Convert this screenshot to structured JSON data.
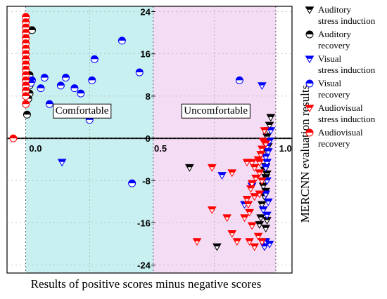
{
  "chart_data": {
    "type": "scatter",
    "xlabel": "Results of positive scores minus negative scores",
    "ylabel": "MERCNN evaluation results",
    "xlim": [
      -0.08,
      1.06
    ],
    "ylim": [
      -25.5,
      25
    ],
    "x_tick_labels": [
      {
        "value": 0.0,
        "label": "0.0"
      },
      {
        "value": 0.5,
        "label": "0.5"
      },
      {
        "value": 1.0,
        "label": "1.0"
      }
    ],
    "y_tick_labels": [
      {
        "value": 24,
        "label": "24"
      },
      {
        "value": 16,
        "label": "16"
      },
      {
        "value": 8,
        "label": "8"
      },
      {
        "value": 0,
        "label": "0"
      },
      {
        "value": -8,
        "label": "-8"
      },
      {
        "value": -16,
        "label": "-16"
      },
      {
        "value": -24,
        "label": "-24"
      }
    ],
    "regions": [
      {
        "label": "Comfortable",
        "x_range": [
          -0.005,
          0.505
        ],
        "color": "#c8f0f0"
      },
      {
        "label": "Uncomfortable",
        "x_range": [
          0.505,
          0.995
        ],
        "color": "#f5dcf5"
      }
    ],
    "legend_position": "right",
    "series": [
      {
        "name": "Auditory stress induction",
        "name_lines": [
          "Auditory",
          "stress induction"
        ],
        "marker": "triangle",
        "color": "#000000",
        "points": [
          [
            0.975,
            4.0
          ],
          [
            0.97,
            2.5
          ],
          [
            0.965,
            1.5
          ],
          [
            0.96,
            0.3
          ],
          [
            0.97,
            -0.5
          ],
          [
            0.965,
            -1.5
          ],
          [
            0.96,
            -2.5
          ],
          [
            0.955,
            -3.5
          ],
          [
            0.96,
            -4.5
          ],
          [
            0.955,
            -5.3
          ],
          [
            0.95,
            -6.0
          ],
          [
            0.96,
            -6.7
          ],
          [
            0.955,
            -7.4
          ],
          [
            0.95,
            -8.1
          ],
          [
            0.945,
            -9.0
          ],
          [
            0.955,
            -10.0
          ],
          [
            0.95,
            -11.0
          ],
          [
            0.94,
            -12.5
          ],
          [
            0.945,
            -13.5
          ],
          [
            0.935,
            -15.0
          ],
          [
            0.96,
            -15.5
          ],
          [
            0.93,
            -16.3
          ],
          [
            0.955,
            -17.0
          ],
          [
            0.65,
            -5.5
          ],
          [
            0.76,
            -20.5
          ]
        ]
      },
      {
        "name": "Auditory recovery",
        "name_lines": [
          "Auditory",
          "recovery"
        ],
        "marker": "circle",
        "color": "#000000",
        "points": [
          [
            0.02,
            20.5
          ],
          [
            0.01,
            12.0
          ],
          [
            0.01,
            10.0
          ],
          [
            0.01,
            8.5
          ],
          [
            0.005,
            7.5
          ],
          [
            0.0,
            4.5
          ]
        ]
      },
      {
        "name": "Visual stress induction",
        "name_lines": [
          "Visual",
          "stress induction"
        ],
        "marker": "triangle",
        "color": "#0000ff",
        "points": [
          [
            0.975,
            1.5
          ],
          [
            0.97,
            -0.5
          ],
          [
            0.96,
            -1.5
          ],
          [
            0.965,
            -2.5
          ],
          [
            0.955,
            -3.5
          ],
          [
            0.96,
            -4.5
          ],
          [
            0.955,
            -5.5
          ],
          [
            0.96,
            -8.0
          ],
          [
            0.955,
            -10.5
          ],
          [
            0.965,
            -12.0
          ],
          [
            0.945,
            -13.5
          ],
          [
            0.96,
            -14.5
          ],
          [
            0.955,
            -19.5
          ],
          [
            0.97,
            -20.0
          ],
          [
            0.95,
            -20.5
          ],
          [
            0.9,
            -9.0
          ],
          [
            0.87,
            -12.5
          ],
          [
            0.78,
            -7.0
          ],
          [
            0.94,
            10.0
          ],
          [
            0.14,
            -4.5
          ]
        ]
      },
      {
        "name": "Visual recovery",
        "name_lines": [
          "Visual",
          "recovery"
        ],
        "marker": "circle",
        "color": "#0000ff",
        "points": [
          [
            0.38,
            18.5
          ],
          [
            0.27,
            15.0
          ],
          [
            0.07,
            11.5
          ],
          [
            0.02,
            11.0
          ],
          [
            0.015,
            10.5
          ],
          [
            0.155,
            11.5
          ],
          [
            0.26,
            11.0
          ],
          [
            0.45,
            12.5
          ],
          [
            0.135,
            10.0
          ],
          [
            0.055,
            9.5
          ],
          [
            0.19,
            9.5
          ],
          [
            0.215,
            8.5
          ],
          [
            0.09,
            6.5
          ],
          [
            0.19,
            5.5
          ],
          [
            0.25,
            3.5
          ],
          [
            0.42,
            -8.5
          ],
          [
            0.85,
            11.0
          ]
        ]
      },
      {
        "name": "Audiovisual stress induction",
        "name_lines": [
          "Audiovisual",
          "stress induction"
        ],
        "marker": "triangle",
        "color": "#ff0000",
        "points": [
          [
            0.95,
            1.5
          ],
          [
            0.945,
            -0.5
          ],
          [
            0.955,
            -1.0
          ],
          [
            0.94,
            -2.0
          ],
          [
            0.935,
            -3.0
          ],
          [
            0.925,
            -4.0
          ],
          [
            0.93,
            -4.5
          ],
          [
            0.9,
            -4.5
          ],
          [
            0.91,
            -5.5
          ],
          [
            0.93,
            -6.5
          ],
          [
            0.915,
            -7.5
          ],
          [
            0.94,
            -8.0
          ],
          [
            0.9,
            -8.5
          ],
          [
            0.895,
            -9.5
          ],
          [
            0.93,
            -10.5
          ],
          [
            0.91,
            -11.0
          ],
          [
            0.88,
            -11.5
          ],
          [
            0.885,
            -12.5
          ],
          [
            0.89,
            -14.0
          ],
          [
            0.87,
            -15.0
          ],
          [
            0.9,
            -16.5
          ],
          [
            0.925,
            -18.5
          ],
          [
            0.94,
            -19.5
          ],
          [
            0.91,
            -20.5
          ],
          [
            0.89,
            -19.5
          ],
          [
            0.82,
            -18.0
          ],
          [
            0.8,
            -15.0
          ],
          [
            0.84,
            -19.5
          ],
          [
            0.74,
            -13.5
          ],
          [
            0.68,
            -19.5
          ],
          [
            0.82,
            -6.5
          ],
          [
            0.74,
            -5.5
          ],
          [
            0.88,
            -4.5
          ]
        ]
      },
      {
        "name": "Audiovisual recovery",
        "name_lines": [
          "Audiovisual",
          "recovery"
        ],
        "marker": "circle",
        "color": "#ff0000",
        "points": [
          [
            -0.005,
            23.0
          ],
          [
            -0.005,
            22.0
          ],
          [
            -0.005,
            21.0
          ],
          [
            -0.005,
            20.0
          ],
          [
            -0.005,
            19.0
          ],
          [
            -0.005,
            18.0
          ],
          [
            -0.005,
            17.0
          ],
          [
            -0.005,
            16.0
          ],
          [
            -0.005,
            15.0
          ],
          [
            -0.005,
            14.0
          ],
          [
            -0.005,
            13.0
          ],
          [
            -0.005,
            12.0
          ],
          [
            -0.005,
            11.0
          ],
          [
            -0.005,
            10.0
          ],
          [
            -0.005,
            9.0
          ],
          [
            -0.005,
            8.0
          ],
          [
            -0.005,
            6.5
          ],
          [
            -0.055,
            0.0
          ]
        ]
      }
    ]
  }
}
